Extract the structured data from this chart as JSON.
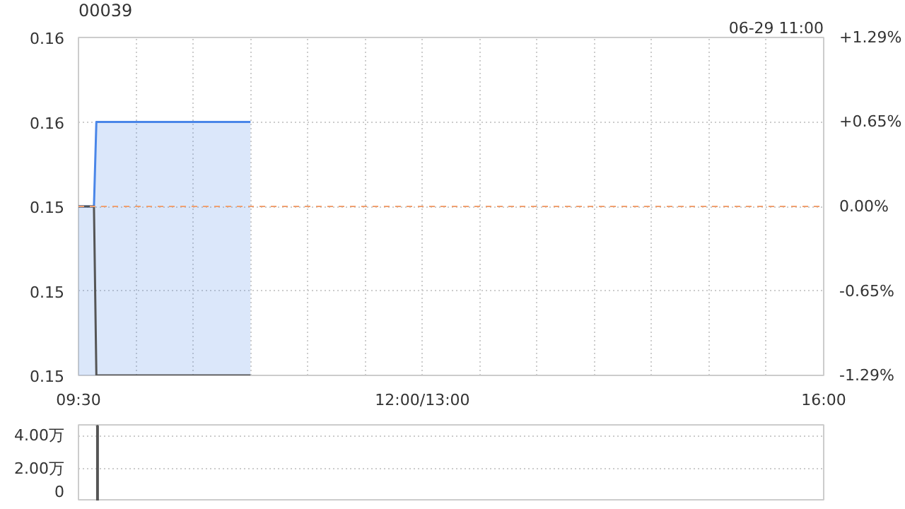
{
  "chart_data": [
    {
      "type": "line",
      "title": "00039",
      "annotations": [
        "06-29 11:00"
      ],
      "series": [
        {
          "type": "area",
          "color": "#4a86e8",
          "x": [
            9.5,
            9.635,
            9.656,
            11.0
          ],
          "values": [
            0.155,
            0.155,
            0.156,
            0.156
          ]
        },
        {
          "type": "line",
          "color": "#555555",
          "x": [
            9.5,
            9.635,
            9.656,
            11.0
          ],
          "values": [
            0.155,
            0.155,
            0.153,
            0.153
          ]
        }
      ],
      "ref_lines": [
        {
          "axis": "y",
          "value": 0.155,
          "label": null,
          "color": "#f0a070",
          "line_style": "dashed"
        }
      ],
      "xlim": [
        9.5,
        16
      ],
      "xticks": [
        {
          "value": 9.5,
          "label": "09:30"
        },
        {
          "value": 10,
          "label": null
        },
        {
          "value": 10.5,
          "label": null
        },
        {
          "value": 11,
          "label": null
        },
        {
          "value": 11.5,
          "label": null
        },
        {
          "value": 12,
          "label": null
        },
        {
          "value": 12.5,
          "label": "12:00/13:00"
        },
        {
          "value": 13,
          "label": null
        },
        {
          "value": 13.5,
          "label": null
        },
        {
          "value": 14,
          "label": null
        },
        {
          "value": 14.5,
          "label": null
        },
        {
          "value": 15,
          "label": null
        },
        {
          "value": 15.5,
          "label": null
        },
        {
          "value": 16,
          "label": "16:00"
        }
      ],
      "ylim": [
        0.153,
        0.157
      ],
      "yticks": [
        {
          "value": 0.153,
          "label": "0.15"
        },
        {
          "value": 0.154,
          "label": "0.15"
        },
        {
          "value": 0.155,
          "label": "0.15"
        },
        {
          "value": 0.156,
          "label": "0.16"
        },
        {
          "value": 0.157,
          "label": "0.16"
        }
      ],
      "y2lim": [
        -1.29,
        1.29
      ],
      "y2ticks": [
        {
          "value": -1.29,
          "label": "-1.29%"
        },
        {
          "value": -0.65,
          "label": "-0.65%"
        },
        {
          "value": 0,
          "label": "0.00%"
        },
        {
          "value": 0.65,
          "label": "+0.65%"
        },
        {
          "value": 1.29,
          "label": "+1.29%"
        }
      ],
      "grid": true
    },
    {
      "type": "bar",
      "x": [
        9.666
      ],
      "values": [
        4.6
      ],
      "color": "#555555",
      "xlim": [
        9.5,
        16
      ],
      "ylim": [
        0,
        4.65
      ],
      "yticks": [
        0,
        {
          "value": 2,
          "label": "2.00万"
        },
        {
          "value": 4,
          "label": "4.00万"
        }
      ],
      "tick_labels": "y",
      "grid": "y"
    }
  ]
}
